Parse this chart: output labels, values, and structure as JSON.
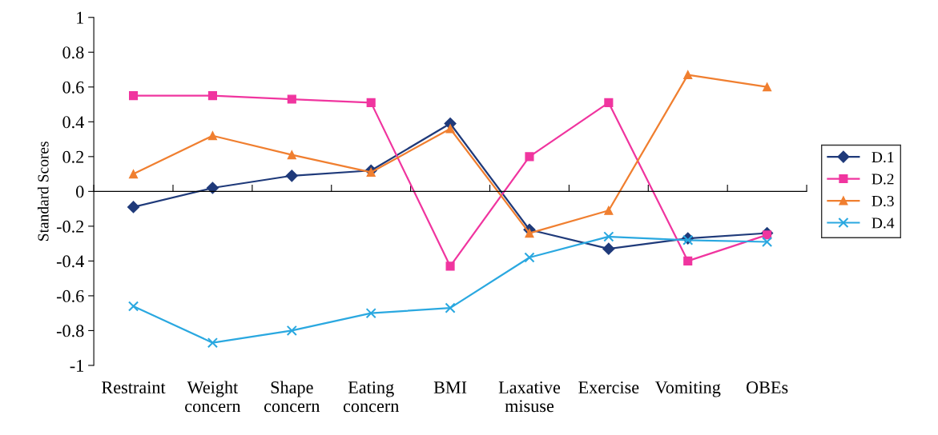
{
  "chart_data": {
    "type": "line",
    "ylabel": "Standard Scores",
    "categories": [
      "Restraint",
      "Weight\nconcern",
      "Shape\nconcern",
      "Eating\nconcern",
      "BMI",
      "Laxative\nmisuse",
      "Exercise",
      "Vomiting",
      "OBEs"
    ],
    "ylim": [
      -1,
      1
    ],
    "yticks": [
      -1,
      -0.8,
      -0.6,
      -0.4,
      -0.2,
      0,
      0.2,
      0.4,
      0.6,
      0.8,
      1
    ],
    "legend": "right",
    "series": [
      {
        "name": "D.1",
        "color": "#1f3a7a",
        "marker": "diamond",
        "values": [
          -0.09,
          0.02,
          0.09,
          0.12,
          0.39,
          -0.22,
          -0.33,
          -0.27,
          -0.24
        ]
      },
      {
        "name": "D.2",
        "color": "#f0359f",
        "marker": "square",
        "values": [
          0.55,
          0.55,
          0.53,
          0.51,
          -0.43,
          0.2,
          0.51,
          -0.4,
          -0.25
        ]
      },
      {
        "name": "D.3",
        "color": "#f07f30",
        "marker": "triangle",
        "values": [
          0.1,
          0.32,
          0.21,
          0.11,
          0.36,
          -0.24,
          -0.11,
          0.67,
          0.6
        ]
      },
      {
        "name": "D.4",
        "color": "#2aa8e0",
        "marker": "cross",
        "values": [
          -0.66,
          -0.87,
          -0.8,
          -0.7,
          -0.67,
          -0.38,
          -0.26,
          -0.28,
          -0.29
        ]
      }
    ]
  }
}
